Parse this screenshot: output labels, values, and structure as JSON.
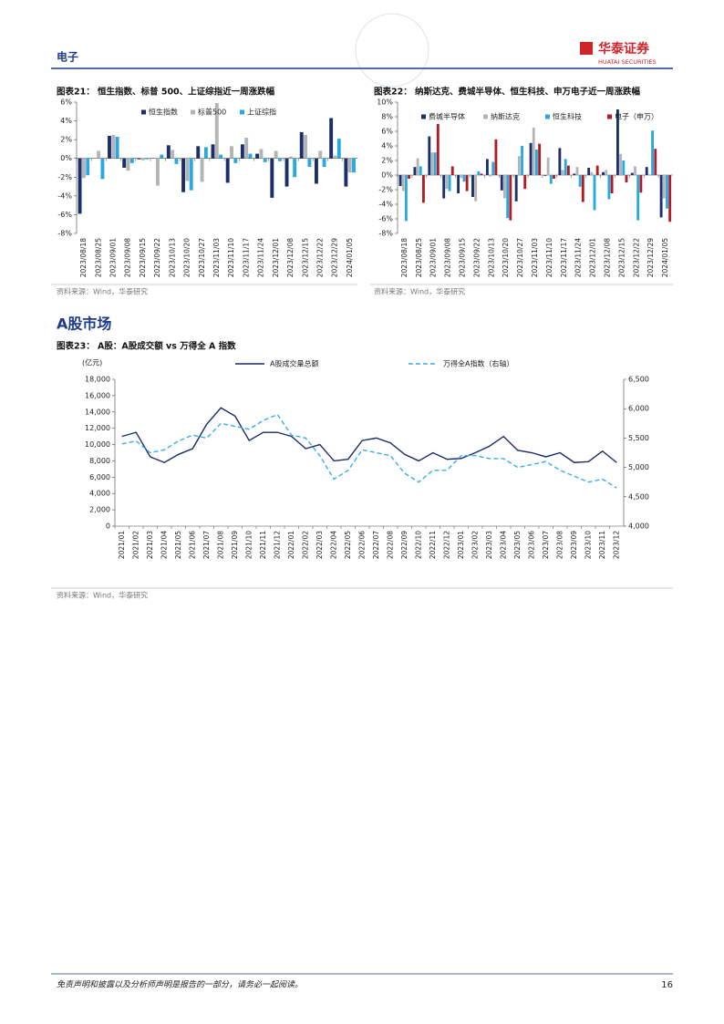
{
  "header": {
    "section": "电子",
    "logo": "华泰证券",
    "logo_en": "HUATAI SECURITIES"
  },
  "section_title": "A股市场",
  "footer": {
    "disclaimer": "免责声明和披露以及分析师声明是报告的一部分，请务必一起阅读。",
    "page": "16"
  },
  "chart_data": [
    {
      "type": "bar",
      "title": "图表21： 恒生指数、标普 500、上证综指近一周涨跌幅",
      "source": "资料来源：Wind，华泰研究",
      "categories": [
        "2023/08/18",
        "2023/08/25",
        "2023/09/01",
        "2023/09/08",
        "2023/09/15",
        "2023/09/22",
        "2023/10/13",
        "2023/10/20",
        "2023/10/27",
        "2023/11/03",
        "2023/11/10",
        "2023/11/17",
        "2023/11/24",
        "2023/12/01",
        "2023/12/08",
        "2023/12/15",
        "2023/12/22",
        "2023/12/29",
        "2024/01/05"
      ],
      "series": [
        {
          "name": "恒生指数",
          "color": "#1a2f6b",
          "values": [
            -5.9,
            0.0,
            2.4,
            -1.0,
            -0.1,
            0.0,
            1.4,
            -3.6,
            1.3,
            1.5,
            -2.6,
            1.5,
            0.5,
            -4.2,
            -3.0,
            2.8,
            -2.7,
            4.3,
            -3.0
          ]
        },
        {
          "name": "标普500",
          "color": "#b4b4b4",
          "values": [
            -2.1,
            0.8,
            2.5,
            -1.3,
            -0.2,
            -2.9,
            0.9,
            -2.4,
            -2.5,
            5.9,
            1.3,
            2.2,
            1.0,
            0.8,
            0.2,
            2.5,
            0.8,
            0.3,
            -1.5
          ]
        },
        {
          "name": "上证综指",
          "color": "#29a9e1",
          "values": [
            -1.8,
            -2.2,
            2.3,
            -0.5,
            -0.1,
            0.4,
            -0.6,
            -3.4,
            1.2,
            0.4,
            -0.5,
            0.5,
            -0.4,
            -0.3,
            -2.0,
            -0.9,
            -0.9,
            2.1,
            -1.5
          ]
        }
      ],
      "ylim": [
        -8,
        6
      ],
      "yticks": [
        {
          "value": -8,
          "label": "-8%"
        },
        {
          "value": -6,
          "label": "-6%"
        },
        {
          "value": -4,
          "label": "-4%"
        },
        {
          "value": -2,
          "label": "-2%"
        },
        {
          "value": 0,
          "label": "0%"
        },
        {
          "value": 2,
          "label": "2%"
        },
        {
          "value": 4,
          "label": "4%"
        },
        {
          "value": 6,
          "label": "6%"
        }
      ],
      "grid": false,
      "legend": "top"
    },
    {
      "type": "bar",
      "title": "图表22： 纳斯达克、费城半导体、恒生科技、申万电子近一周涨跌幅",
      "source": "资料来源：Wind，华泰研究",
      "categories": [
        "2023/08/18",
        "2023/08/25",
        "2023/09/01",
        "2023/09/08",
        "2023/09/15",
        "2023/09/22",
        "2023/10/13",
        "2023/10/20",
        "2023/10/27",
        "2023/11/03",
        "2023/11/10",
        "2023/11/17",
        "2023/11/24",
        "2023/12/01",
        "2023/12/08",
        "2023/12/15",
        "2023/12/22",
        "2023/12/29",
        "2024/01/05"
      ],
      "series": [
        {
          "name": "费城半导体",
          "color": "#1a2f6b",
          "values": [
            -1.5,
            1.1,
            5.3,
            -3.2,
            -2.5,
            -3.0,
            2.2,
            -2.1,
            -3.6,
            4.4,
            -0.1,
            3.7,
            0.2,
            1.0,
            0.4,
            9.0,
            0.3,
            1.1,
            -5.8
          ]
        },
        {
          "name": "纳斯达克",
          "color": "#b4b4b4",
          "values": [
            -2.2,
            2.3,
            3.1,
            -1.9,
            -0.4,
            -3.6,
            -0.2,
            -3.2,
            2.6,
            6.5,
            2.4,
            0.7,
            1.1,
            0.4,
            0.7,
            2.9,
            1.2,
            0.1,
            -3.2
          ]
        },
        {
          "name": "恒生科技",
          "color": "#29a9e1",
          "values": [
            -6.3,
            1.2,
            3.1,
            -2.2,
            -0.9,
            0.5,
            1.8,
            -5.9,
            4.0,
            3.5,
            -1.2,
            2.2,
            -1.6,
            -4.8,
            -3.3,
            2.0,
            -6.2,
            6.1,
            -4.6
          ]
        },
        {
          "name": "电子（申万）",
          "color": "#b01c24",
          "values": [
            -0.5,
            -3.8,
            7.0,
            1.2,
            -2.2,
            0.2,
            4.9,
            -6.2,
            -1.9,
            4.3,
            -0.5,
            1.3,
            -3.7,
            1.3,
            -2.5,
            -1.0,
            -2.4,
            3.6,
            -6.4
          ]
        }
      ],
      "ylim": [
        -8,
        10
      ],
      "yticks": [
        {
          "value": -8,
          "label": "-8%"
        },
        {
          "value": -6,
          "label": "-6%"
        },
        {
          "value": -4,
          "label": "-4%"
        },
        {
          "value": -2,
          "label": "-2%"
        },
        {
          "value": 0,
          "label": "0%"
        },
        {
          "value": 2,
          "label": "2%"
        },
        {
          "value": 4,
          "label": "4%"
        },
        {
          "value": 6,
          "label": "6%"
        },
        {
          "value": 8,
          "label": "8%"
        },
        {
          "value": 10,
          "label": "10%"
        }
      ],
      "grid": false,
      "legend": "top"
    },
    {
      "type": "line",
      "title": "图表23： A股：A股成交额 vs 万得全 A 指数",
      "source": "资料来源：Wind，华泰研究",
      "y_label": "(亿元)",
      "categories": [
        "2021/01",
        "2021/02",
        "2021/03",
        "2021/04",
        "2021/05",
        "2021/06",
        "2021/07",
        "2021/08",
        "2021/09",
        "2021/10",
        "2021/11",
        "2021/12",
        "2022/01",
        "2022/02",
        "2022/03",
        "2022/04",
        "2022/05",
        "2022/06",
        "2022/07",
        "2022/08",
        "2022/09",
        "2022/10",
        "2022/11",
        "2022/12",
        "2023/01",
        "2023/02",
        "2023/03",
        "2023/04",
        "2023/05",
        "2023/06",
        "2023/07",
        "2023/08",
        "2023/09",
        "2023/10",
        "2023/11",
        "2023/12"
      ],
      "series": [
        {
          "name": "A股成交量总额",
          "color": "#1a2a6c",
          "values": [
            11000,
            11500,
            8500,
            7800,
            8800,
            9500,
            12500,
            14500,
            13500,
            10500,
            11500,
            11500,
            11000,
            9500,
            10000,
            8000,
            8200,
            10500,
            10800,
            10200,
            8800,
            8000,
            9000,
            8200,
            8300,
            9000,
            9800,
            11000,
            9300,
            9000,
            8500,
            9000,
            7800,
            7900,
            9200,
            7800
          ]
        },
        {
          "name": "万得全A指数（右轴）",
          "color": "#3aaee6",
          "axis": "y2",
          "dash": true,
          "values": [
            5400,
            5450,
            5250,
            5300,
            5450,
            5550,
            5500,
            5750,
            5700,
            5650,
            5800,
            5900,
            5550,
            5500,
            5200,
            4800,
            4950,
            5300,
            5250,
            5200,
            4900,
            4750,
            4950,
            4950,
            5200,
            5200,
            5150,
            5150,
            5000,
            5050,
            5100,
            4950,
            4850,
            4750,
            4800,
            4650
          ]
        }
      ],
      "ylim": [
        0,
        18000
      ],
      "yticks": [
        0,
        {
          "value": 2000,
          "label": "2,000"
        },
        {
          "value": 4000,
          "label": "4,000"
        },
        {
          "value": 6000,
          "label": "6,000"
        },
        {
          "value": 8000,
          "label": "8,000"
        },
        {
          "value": 10000,
          "label": "10,000"
        },
        {
          "value": 12000,
          "label": "12,000"
        },
        {
          "value": 14000,
          "label": "14,000"
        },
        {
          "value": 16000,
          "label": "16,000"
        },
        {
          "value": 18000,
          "label": "18,000"
        }
      ],
      "y2lim": [
        4000,
        6500
      ],
      "y2ticks": [
        {
          "value": 4000,
          "label": "4,000"
        },
        {
          "value": 4500,
          "label": "4,500"
        },
        {
          "value": 5000,
          "label": "5,000"
        },
        {
          "value": 5500,
          "label": "5,500"
        },
        {
          "value": 6000,
          "label": "6,000"
        },
        {
          "value": 6500,
          "label": "6,500"
        }
      ],
      "grid": false,
      "legend": "top"
    }
  ]
}
